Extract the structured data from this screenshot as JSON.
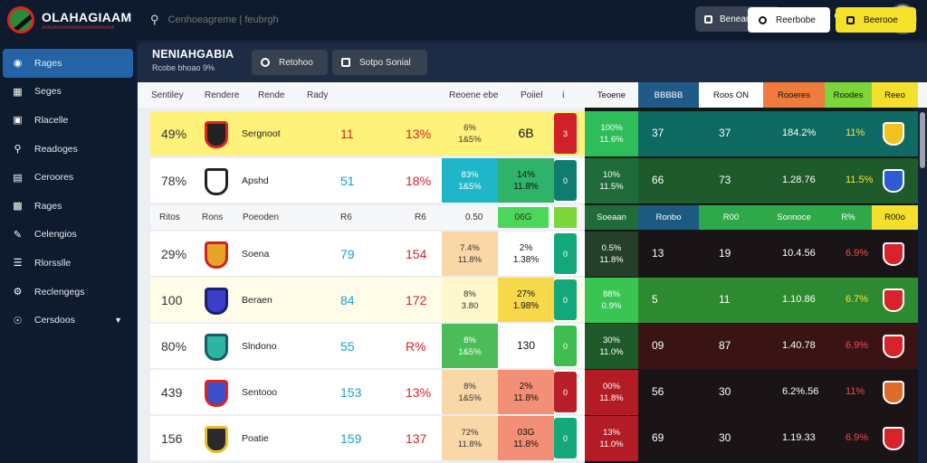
{
  "app": {
    "name": "OLAHAGIAAM",
    "tagline": "AAAAAAAAAAAAAAAAAAAAAAAA",
    "search_placeholder": "Cenhoeagreme | feubrgh",
    "top_button": "Beneanoer"
  },
  "sidebar": {
    "items": [
      {
        "label": "Rages",
        "icon": "dashboard-icon",
        "active": true
      },
      {
        "label": "Seges",
        "icon": "table-icon"
      },
      {
        "label": "Rlacelle",
        "icon": "camera-icon"
      },
      {
        "label": "Readoges",
        "icon": "search-icon"
      },
      {
        "label": "Ceroores",
        "icon": "book-icon"
      },
      {
        "label": "Rages",
        "icon": "calendar-icon"
      },
      {
        "label": "Celengios",
        "icon": "pen-icon"
      },
      {
        "label": "Rlorsslle",
        "icon": "list-icon"
      },
      {
        "label": "Reclengegs",
        "icon": "settings-icon"
      },
      {
        "label": "Cersdoos",
        "icon": "globe-icon"
      }
    ]
  },
  "header": {
    "title": "NENIAHGABIA",
    "subtitle": "Rcobe bhoao 9%",
    "btn1": "Retohoo",
    "btn2": "Sotpo Sonial",
    "btn3": "Reerbobe",
    "btn4": "Beerooe"
  },
  "columns": {
    "left": [
      "Sentiley",
      "Rendere",
      "Rende",
      "Rady",
      "Reoene ebe",
      "Poiiel",
      "i"
    ],
    "right": [
      "Teoene",
      "BBBBB",
      "Roos ON",
      "Rooeres",
      "Roodes",
      "Reeo"
    ],
    "right_colors": [
      "#1f4f78",
      "#1d5a82",
      "#ffffff",
      "#f07b3c",
      "#7cd63a",
      "#f4e02c"
    ]
  },
  "subheader": {
    "left": [
      "Ritos",
      "Rons",
      "Poeoden",
      "R6",
      "R6",
      "0.50",
      "06G",
      ""
    ],
    "right": [
      "Soeaan",
      "Ronbo",
      "R00",
      "Sonnoce",
      "R%",
      "R00o"
    ]
  },
  "rows": [
    {
      "rank": "49%",
      "team": "Sergnoot",
      "n1": "11",
      "n2": "13%",
      "b1": [
        "6%",
        "1&5%"
      ],
      "b2": "6B",
      "tab": "3",
      "pct": [
        "100%",
        "11.6%"
      ],
      "v1": "37",
      "v2": "37",
      "v3": "184.2%",
      "v4": "11%",
      "highlight": true,
      "crest": "#222",
      "crest2": "#d22",
      "b1c": "#fff27a",
      "b2c": "#fff27a",
      "tabc": "#d0202a",
      "pctc": "#2dbd5a",
      "rowc": "#0e6a62",
      "v4c": "#f7e23a",
      "icoc": "#f2c320"
    },
    {
      "rank": "78%",
      "team": "Apshd",
      "n1": "51",
      "n2": "18%",
      "b1": [
        "83%",
        "1&5%"
      ],
      "b2": [
        "14%",
        "11.8%"
      ],
      "tab": "0",
      "pct": [
        "10%",
        "11.5%"
      ],
      "v1": "66",
      "v2": "73",
      "v3": "1.28.76",
      "v4": "11.5%",
      "crest": "#222",
      "crest2": "#d22",
      "b1c": "#1fb6c9",
      "b2c": "#2fb36a",
      "tabc": "#0f7c72",
      "pctc": "#1f6b3a",
      "rowc": "#1e5a2b",
      "v4c": "#f7e23a",
      "icoc": "#2d5bd4"
    },
    {
      "rank": "29%",
      "team": "Soena",
      "n1": "79",
      "n2": "154",
      "b1": [
        "7.4%",
        "11.8%"
      ],
      "b2": [
        "2%",
        "1.38%"
      ],
      "tab": "0",
      "pct": [
        "0.5%",
        "11.8%"
      ],
      "v1": "13",
      "v2": "19",
      "v3": "10.4.56",
      "v4": "6.9%",
      "crest": "#e6a326",
      "crest2": "#c22",
      "b1c": "#f9d7a6",
      "b2c": "#ffffff",
      "tabc": "#13a87c",
      "pctc": "#24402b",
      "rowc": "#1a1416",
      "v4c": "#f04a4a",
      "icoc": "#d8232d"
    },
    {
      "rank": "100",
      "team": "Beraen",
      "n1": "84",
      "n2": "172",
      "b1": [
        "8%",
        "3.80"
      ],
      "b2": [
        "27%",
        "1.98%"
      ],
      "tab": "0",
      "pct": [
        "88%",
        "0.9%"
      ],
      "v1": "5",
      "v2": "11",
      "v3": "1.10.86",
      "v4": "6.7%",
      "crest": "#3a3ec9",
      "crest2": "#1c1f6b",
      "b1c": "#fff7cc",
      "b2c": "#f7d84a",
      "tabc": "#13a87c",
      "pctc": "#38c552",
      "rowc": "#2d8a30",
      "v4c": "#f7e23a",
      "icoc": "#d8232d"
    },
    {
      "rank": "80%",
      "team": "Slndono",
      "n1": "55",
      "n2": "R%",
      "b1": [
        "8%",
        "1&5%"
      ],
      "b2": "130",
      "tab": "0",
      "pct": [
        "30%",
        "11.0%"
      ],
      "v1": "09",
      "v2": "87",
      "v3": "1.40.78",
      "v4": "6.9%",
      "crest": "#2bb6a2",
      "crest2": "#1b5a6b",
      "b1c": "#4cbc58",
      "b2c": "#ffffff",
      "tabc": "#3dbe4e",
      "pctc": "#1f5a2a",
      "rowc": "#3a1414",
      "v4c": "#f04a4a",
      "icoc": "#d8232d"
    },
    {
      "rank": "439",
      "team": "Sentooo",
      "n1": "153",
      "n2": "13%",
      "b1": [
        "8%",
        "1&5%"
      ],
      "b2": [
        "2%",
        "11.8%"
      ],
      "tab": "0",
      "pct": [
        "00%",
        "11.8%"
      ],
      "v1": "56",
      "v2": "30",
      "v3": "6.2%.56",
      "v4": "11%",
      "crest": "#3a4fc9",
      "crest2": "#d22",
      "b1c": "#f9d7a6",
      "b2c": "#f28f76",
      "tabc": "#b81f28",
      "pctc": "#b31c25",
      "rowc": "#1a1416",
      "v4c": "#f04a4a",
      "icoc": "#e06a2a"
    },
    {
      "rank": "156",
      "team": "Poatie",
      "n1": "159",
      "n2": "137",
      "b1": [
        "72%",
        "11.8%"
      ],
      "b2": [
        "03G",
        "11.8%"
      ],
      "tab": "0",
      "pct": [
        "13%",
        "11.0%"
      ],
      "v1": "69",
      "v2": "30",
      "v3": "1.19.33",
      "v4": "6.9%",
      "crest": "#2a2a2a",
      "crest2": "#e8c12a",
      "b1c": "#f9d7a6",
      "b2c": "#f28f76",
      "tabc": "#13a87c",
      "pctc": "#b31c25",
      "rowc": "#1a1416",
      "v4c": "#f04a4a",
      "icoc": "#d8232d"
    }
  ]
}
